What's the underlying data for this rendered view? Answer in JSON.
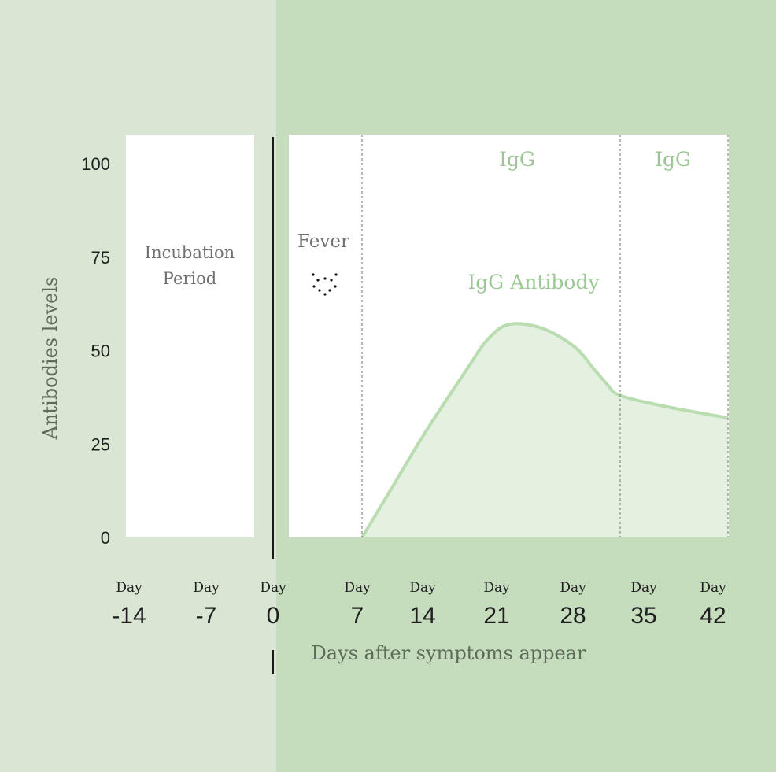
{
  "chart_data": {
    "type": "area",
    "xlabel": "Days after symptoms appear",
    "ylabel": "Antibodies levels",
    "xlim": [
      -14,
      42
    ],
    "ylim": [
      0,
      100
    ],
    "x_ticks": [
      {
        "prefix": "Day",
        "value": "-14",
        "x": -14
      },
      {
        "prefix": "Day",
        "value": "-7",
        "x": -7
      },
      {
        "prefix": "Day",
        "value": "0",
        "x": 0
      },
      {
        "prefix": "Day",
        "value": "7",
        "x": 7
      },
      {
        "prefix": "Day",
        "value": "14",
        "x": 14
      },
      {
        "prefix": "Day",
        "value": "21",
        "x": 21
      },
      {
        "prefix": "Day",
        "value": "28",
        "x": 28
      },
      {
        "prefix": "Day",
        "value": "35",
        "x": 35
      },
      {
        "prefix": "Day",
        "value": "42",
        "x": 42
      }
    ],
    "y_ticks": [
      0,
      25,
      50,
      75,
      100
    ],
    "grid": false,
    "series": [
      {
        "name": "IgG Antibody",
        "color": "#b9dcb0",
        "fill": "#e4f0e0",
        "x": [
          7,
          10,
          14,
          18,
          20,
          22,
          25,
          28,
          31,
          33,
          35,
          38,
          42
        ],
        "y": [
          0,
          12,
          28,
          45,
          53,
          57,
          56,
          51,
          45,
          41,
          38,
          35,
          32
        ]
      }
    ],
    "annotations": {
      "incubation_line1": "Incubation",
      "incubation_line2": "Period",
      "fever": "Fever",
      "igg_label_1": "IgG",
      "igg_label_2": "IgG"
    },
    "colors": {
      "left_background": "#d9e6d3",
      "right_background": "#c5dcbd",
      "panel": "#ffffff",
      "label_green": "#9cc795",
      "text_gray": "#707070",
      "axis_text": "#1f1f1f"
    }
  }
}
